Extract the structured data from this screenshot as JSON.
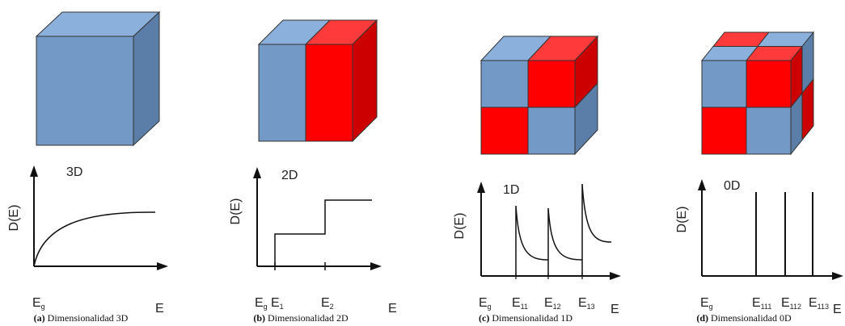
{
  "panels": [
    {
      "caption_label": "(a)",
      "caption_text": "Dimensionalidad 3D",
      "dimension_label": "3D",
      "y_axis_label": "D(E)",
      "x_axis_label": "E",
      "energy_labels": [
        {
          "base": "E",
          "sub": "g"
        }
      ]
    },
    {
      "caption_label": "(b)",
      "caption_text": "Dimensionalidad 2D",
      "dimension_label": "2D",
      "y_axis_label": "D(E)",
      "x_axis_label": "E",
      "energy_labels": [
        {
          "base": "E",
          "sub": "g"
        },
        {
          "base": "E",
          "sub": "1"
        },
        {
          "base": "E",
          "sub": "2"
        }
      ]
    },
    {
      "caption_label": "(c)",
      "caption_text": "Dimensionalidad 1D",
      "dimension_label": "1D",
      "y_axis_label": "D(E)",
      "x_axis_label": "E",
      "energy_labels": [
        {
          "base": "E",
          "sub": "g"
        },
        {
          "base": "E",
          "sub": "11"
        },
        {
          "base": "E",
          "sub": "12"
        },
        {
          "base": "E",
          "sub": "13"
        }
      ]
    },
    {
      "caption_label": "(d)",
      "caption_text": "Dimensionalidad 0D",
      "dimension_label": "0D",
      "y_axis_label": "D(E)",
      "x_axis_label": "E",
      "energy_labels": [
        {
          "base": "E",
          "sub": "g"
        },
        {
          "base": "E",
          "sub": "111"
        },
        {
          "base": "E",
          "sub": "112"
        },
        {
          "base": "E",
          "sub": "113"
        }
      ]
    }
  ]
}
